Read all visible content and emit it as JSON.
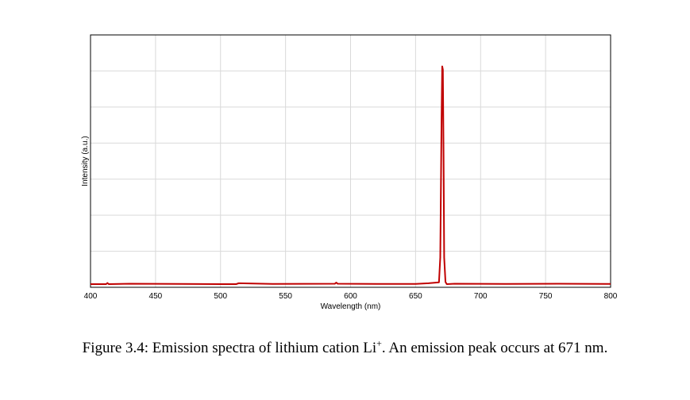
{
  "chart_data": {
    "type": "line",
    "title": "",
    "xlabel": "Wavelength (nm)",
    "ylabel": "Intensity (a.u.)",
    "xlim": [
      400,
      800
    ],
    "ylim": [
      0,
      1.0
    ],
    "x_ticks": [
      400,
      450,
      500,
      550,
      600,
      650,
      700,
      750,
      800
    ],
    "y_ticks_count": 7,
    "grid": true,
    "line_color": "#c00000",
    "series": [
      {
        "x": [
          400,
          412,
          413,
          414,
          430,
          470,
          500,
          512,
          514,
          540,
          588,
          589,
          590,
          620,
          650,
          660,
          668,
          669,
          670,
          670.5,
          671,
          671.5,
          672,
          673,
          674,
          680,
          720,
          760,
          800
        ],
        "values": [
          0.0,
          0.0,
          0.005,
          0.0,
          0.002,
          0.001,
          0.0,
          0.0,
          0.004,
          0.001,
          0.002,
          0.007,
          0.002,
          0.001,
          0.001,
          0.004,
          0.008,
          0.12,
          0.75,
          0.98,
          0.965,
          0.6,
          0.12,
          0.01,
          0.0,
          0.002,
          0.001,
          0.002,
          0.001
        ]
      }
    ]
  },
  "caption": {
    "prefix": "Figure 3.4: Emission spectra of lithium cation Li",
    "superscript": "+",
    "suffix": ". An emission peak occurs at 671 nm."
  }
}
